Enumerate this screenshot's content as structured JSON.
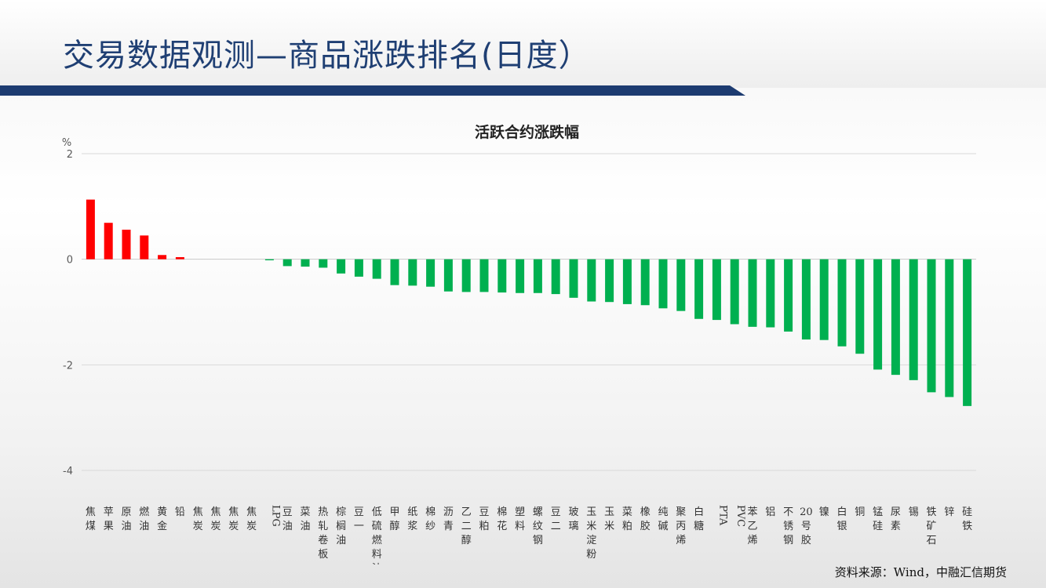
{
  "slide": {
    "title": "交易数据观测—商品涨跌排名(日度）",
    "source": "资料来源：Wind，中融汇信期货"
  },
  "colors": {
    "title_text": "#1f3f73",
    "title_bar": "#1c3b70",
    "rise": "#ff0000",
    "fall": "#00b050",
    "gridline": "#d9d9d9",
    "axis_text": "#595959"
  },
  "chart_data": {
    "type": "bar",
    "title": "活跃合约涨跌幅",
    "ylabel": "%",
    "ylim": [
      -4,
      2
    ],
    "yticks": [
      2,
      0,
      -2,
      -4
    ],
    "grid": true,
    "categories": [
      "焦煤",
      "苹果",
      "原油",
      "燃油",
      "黄金",
      "铅",
      "焦炭",
      "焦炭",
      "焦炭",
      "焦炭",
      "LPG",
      "豆油",
      "菜油",
      "热轧卷板",
      "棕榈油",
      "豆一",
      "低硫燃料油",
      "甲醇",
      "纸浆",
      "棉纱",
      "沥青",
      "乙二醇",
      "豆粕",
      "棉花",
      "塑料",
      "螺纹钢",
      "豆二",
      "玻璃",
      "玉米淀粉",
      "玉米",
      "菜粕",
      "橡胶",
      "纯碱",
      "聚丙烯",
      "白糖",
      "PTA",
      "PVC",
      "苯乙烯",
      "铝",
      "不锈钢",
      "20号胶",
      "镍",
      "白银",
      "铜",
      "锰硅",
      "尿素",
      "锡",
      "铁矿石",
      "锌",
      "硅铁"
    ],
    "values": [
      1.13,
      0.69,
      0.56,
      0.45,
      0.08,
      0.04,
      0,
      0,
      0,
      0,
      -0.02,
      -0.13,
      -0.14,
      -0.16,
      -0.27,
      -0.33,
      -0.37,
      -0.49,
      -0.5,
      -0.52,
      -0.61,
      -0.62,
      -0.62,
      -0.63,
      -0.64,
      -0.64,
      -0.66,
      -0.73,
      -0.8,
      -0.81,
      -0.85,
      -0.87,
      -0.93,
      -0.98,
      -1.13,
      -1.15,
      -1.23,
      -1.28,
      -1.29,
      -1.37,
      -1.52,
      -1.53,
      -1.65,
      -1.79,
      -2.09,
      -2.19,
      -2.29,
      -2.52,
      -2.61,
      -2.78
    ]
  }
}
